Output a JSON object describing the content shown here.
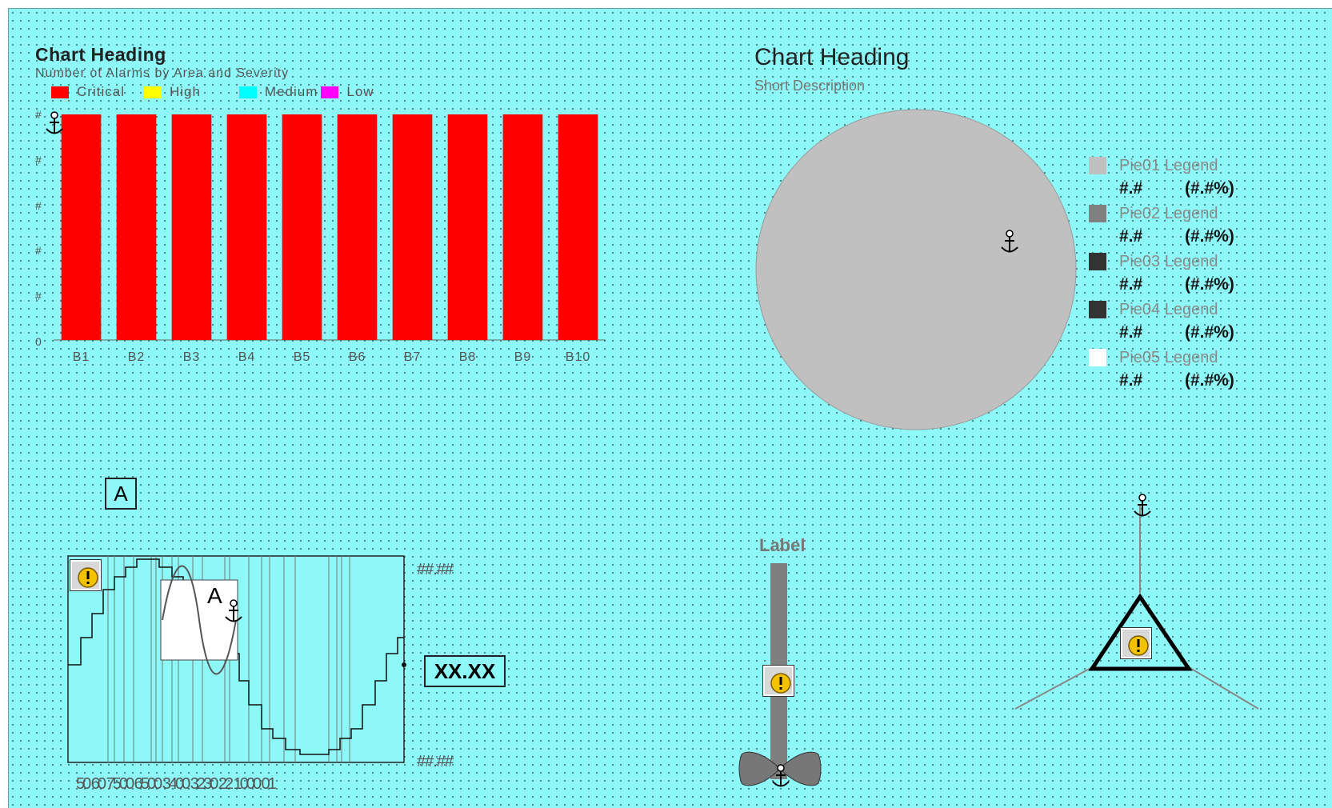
{
  "bar_chart": {
    "heading": "Chart Heading",
    "subtitle": "Number of Alarms by Area and Severity",
    "legend": [
      {
        "label": "Critical",
        "color": "#ff0000"
      },
      {
        "label": "High",
        "color": "#ffff00"
      },
      {
        "label": "Medium",
        "color": "#00ffff"
      },
      {
        "label": "Low",
        "color": "#ff00ff"
      }
    ],
    "y_ticks": [
      "#",
      "#",
      "#",
      "#",
      "#",
      "0"
    ]
  },
  "chart_data": {
    "type": "bar",
    "categories": [
      "B1",
      "B2",
      "B3",
      "B4",
      "B5",
      "B6",
      "B7",
      "B8",
      "B9",
      "B10"
    ],
    "series": [
      {
        "name": "Critical",
        "values": [
          1,
          1,
          1,
          1,
          1,
          1,
          1,
          1,
          1,
          1
        ]
      }
    ],
    "ylim": [
      0,
      1
    ],
    "grid": false,
    "legend_position": "top"
  },
  "pie_chart": {
    "heading": "Chart Heading",
    "subtitle": "Short Description",
    "legend": [
      {
        "label": "Pie01 Legend",
        "value": "#.#",
        "percent": "(#.#%)",
        "color": "#c0c0c0"
      },
      {
        "label": "Pie02 Legend",
        "value": "#.#",
        "percent": "(#.#%)",
        "color": "#808080"
      },
      {
        "label": "Pie03 Legend",
        "value": "#.#",
        "percent": "(#.#%)",
        "color": "#333333"
      },
      {
        "label": "Pie04 Legend",
        "value": "#.#",
        "percent": "(#.#%)",
        "color": "#333333"
      },
      {
        "label": "Pie05 Legend",
        "value": "#.#",
        "percent": "(#.#%)",
        "color": "#ffffff"
      }
    ]
  },
  "trend": {
    "label_box": "A",
    "inner_label": "A",
    "max_label": "##.##",
    "min_label": "##.##",
    "value_box": "XX.XX",
    "x_labels": "50 60 7500 6500 3400 3230 22 1000 01"
  },
  "slider": {
    "label": "Label"
  },
  "colors": {
    "canvas": "#8ef8f8",
    "bar": "#ff0000",
    "pie": "#c0c0c0"
  },
  "icons": [
    "anchor-icon",
    "warning-icon",
    "fan-icon"
  ]
}
